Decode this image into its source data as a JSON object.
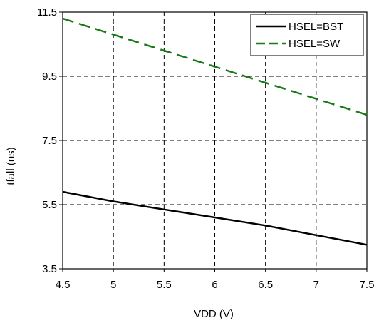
{
  "chart_data": {
    "type": "line",
    "title": "",
    "xlabel": "VDD (V)",
    "ylabel": "tfall (ns)",
    "xlim": [
      4.5,
      7.5
    ],
    "ylim": [
      3.5,
      11.5
    ],
    "x_ticks": [
      "4.5",
      "5",
      "5.5",
      "6",
      "6.5",
      "7",
      "7.5"
    ],
    "y_ticks": [
      "3.5",
      "5.5",
      "7.5",
      "9.5",
      "11.5"
    ],
    "grid": true,
    "legend_position": "top-right",
    "series": [
      {
        "name": "HSEL=BST",
        "color": "#000000",
        "line_style": "solid",
        "x": [
          4.5,
          5,
          5.5,
          6,
          6.5,
          7,
          7.5
        ],
        "y": [
          5.9,
          5.6,
          5.35,
          5.1,
          4.85,
          4.55,
          4.25
        ]
      },
      {
        "name": "HSEL=SW",
        "color": "#1a7a1a",
        "line_style": "dashed",
        "x": [
          4.5,
          5,
          5.5,
          6,
          6.5,
          7,
          7.5
        ],
        "y": [
          11.3,
          10.8,
          10.3,
          9.8,
          9.3,
          8.8,
          8.3
        ]
      }
    ]
  }
}
